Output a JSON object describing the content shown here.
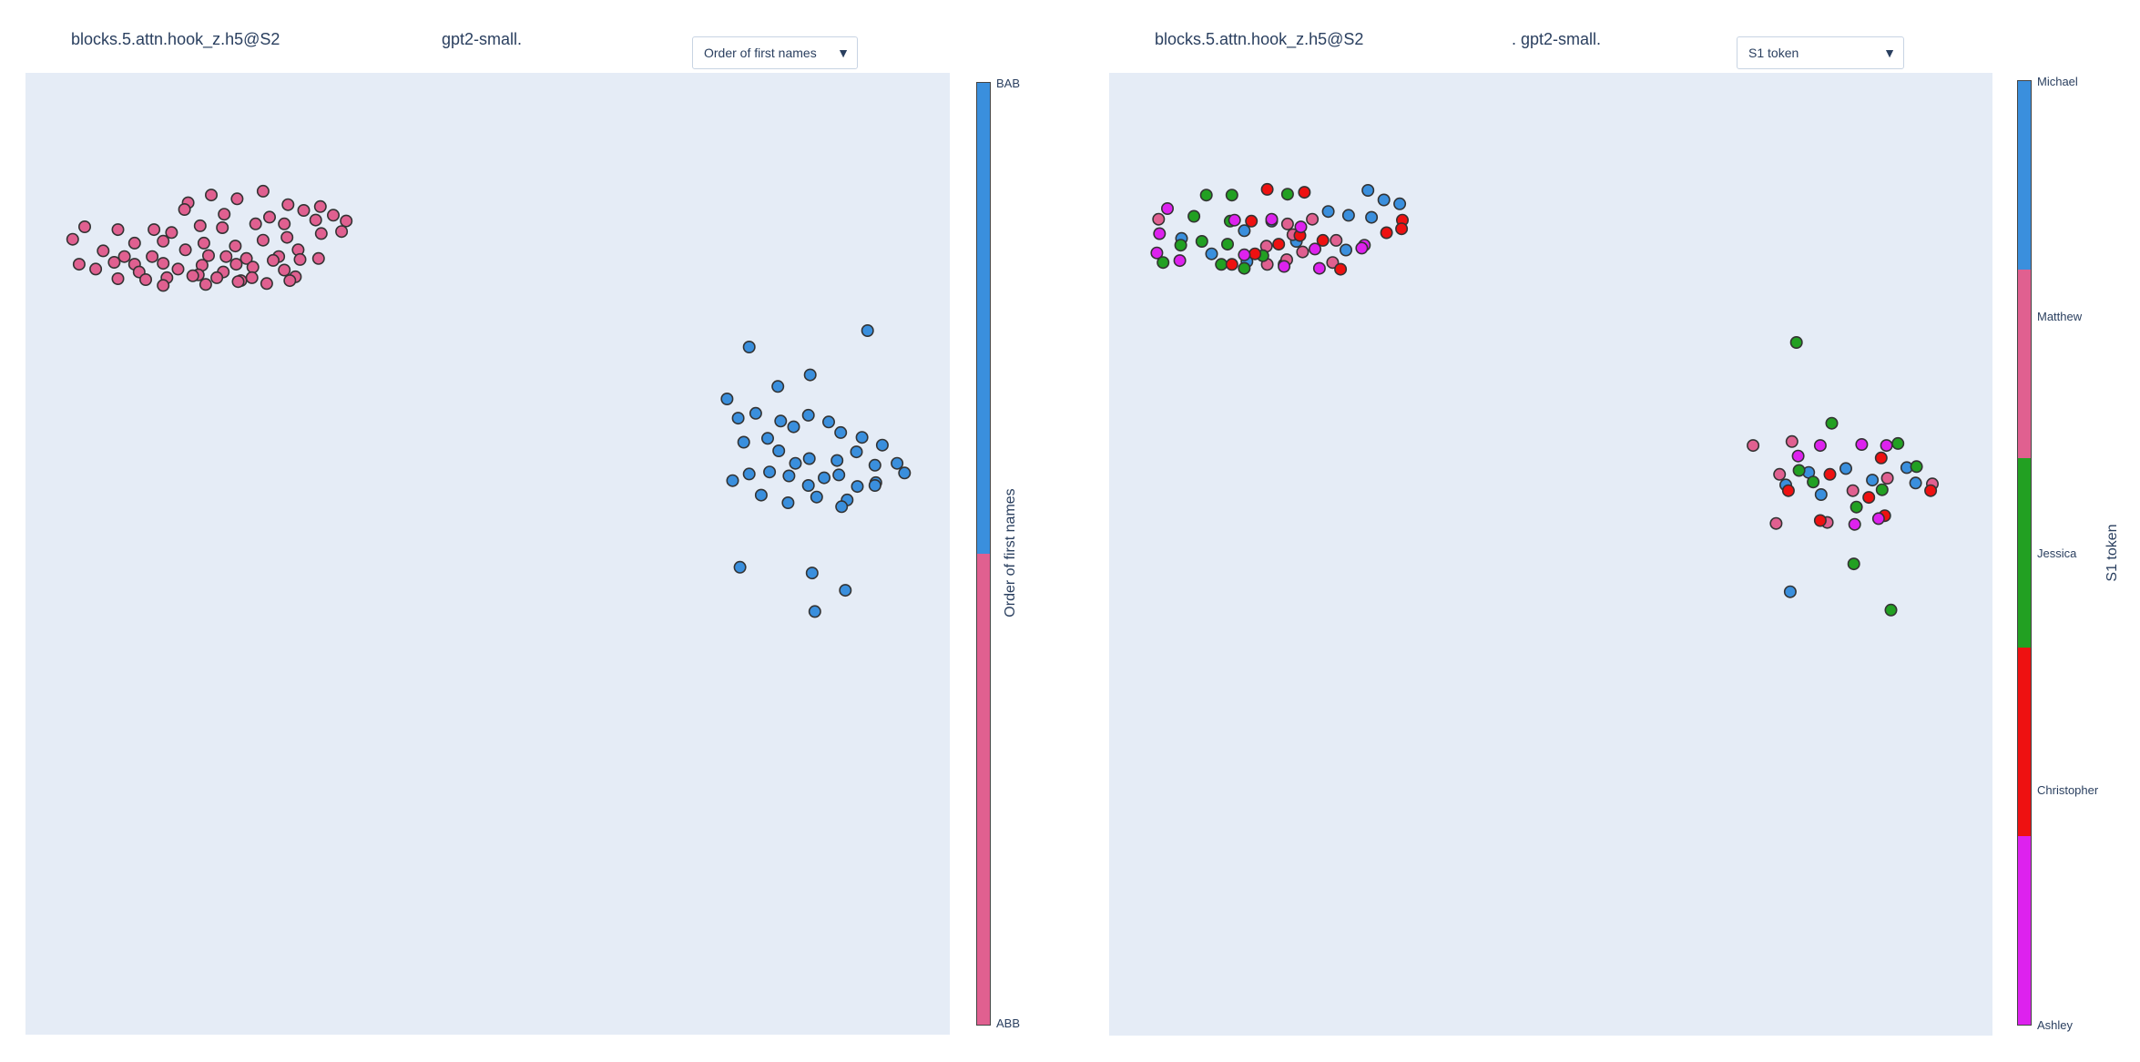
{
  "colors": {
    "pink": "#e06090",
    "blue": "#3a8fdd",
    "green": "#22a022",
    "red": "#ee1111",
    "magenta": "#dd22ee",
    "plot_bg": "#e5ecf6"
  },
  "left": {
    "hook_label": "blocks.5.attn.hook_z.h5@S2",
    "model_label": "gpt2-small.",
    "dropdown_value": "Order of first names",
    "colorbar_title": "Order of first names",
    "colorbar_ticks": [
      "BAB",
      "ABB"
    ]
  },
  "right": {
    "hook_label": "blocks.5.attn.hook_z.h5@S2",
    "model_label": ". gpt2-small.",
    "dropdown_value": "S1 token",
    "colorbar_title": "S1 token",
    "colorbar_ticks": [
      "Michael",
      "Matthew",
      "Jessica",
      "Christopher",
      "Ashley"
    ]
  },
  "chart_data": [
    {
      "type": "scatter",
      "title": "",
      "xlabel": "",
      "ylabel": "",
      "xlim": [
        0,
        100
      ],
      "ylim": [
        0,
        100
      ],
      "legend": "colorbar right",
      "series": [
        {
          "name": "BAB",
          "color": "#3a8fdd",
          "points": [
            [
              78.3,
              71.5
            ],
            [
              81.4,
              67.4
            ],
            [
              84.9,
              68.6
            ],
            [
              91.1,
              73.2
            ],
            [
              75.9,
              66.1
            ],
            [
              77.1,
              64.1
            ],
            [
              79.0,
              64.6
            ],
            [
              81.7,
              63.8
            ],
            [
              83.1,
              63.2
            ],
            [
              84.7,
              64.4
            ],
            [
              86.9,
              63.7
            ],
            [
              88.2,
              62.6
            ],
            [
              90.5,
              62.1
            ],
            [
              92.7,
              61.3
            ],
            [
              77.7,
              61.6
            ],
            [
              80.3,
              62.0
            ],
            [
              81.5,
              60.7
            ],
            [
              83.3,
              59.4
            ],
            [
              84.8,
              59.9
            ],
            [
              87.8,
              59.7
            ],
            [
              89.9,
              60.6
            ],
            [
              91.9,
              59.2
            ],
            [
              94.3,
              59.4
            ],
            [
              76.5,
              57.6
            ],
            [
              78.3,
              58.3
            ],
            [
              80.5,
              58.5
            ],
            [
              82.6,
              58.1
            ],
            [
              84.7,
              57.1
            ],
            [
              86.4,
              57.9
            ],
            [
              88.0,
              58.2
            ],
            [
              90.0,
              57.0
            ],
            [
              92.0,
              57.4
            ],
            [
              95.1,
              58.4
            ],
            [
              79.6,
              56.1
            ],
            [
              82.5,
              55.3
            ],
            [
              85.6,
              55.9
            ],
            [
              88.9,
              55.6
            ],
            [
              88.3,
              54.9
            ],
            [
              91.9,
              57.1
            ],
            [
              77.3,
              48.6
            ],
            [
              85.1,
              48.0
            ],
            [
              88.7,
              46.2
            ],
            [
              85.4,
              44.0
            ]
          ]
        },
        {
          "name": "ABB",
          "color": "#e06090",
          "points": [
            [
              17.6,
              86.5
            ],
            [
              20.1,
              87.3
            ],
            [
              25.7,
              87.7
            ],
            [
              22.9,
              86.9
            ],
            [
              17.2,
              85.8
            ],
            [
              21.5,
              85.3
            ],
            [
              26.4,
              85.0
            ],
            [
              28.4,
              86.3
            ],
            [
              30.1,
              85.7
            ],
            [
              31.9,
              86.1
            ],
            [
              33.3,
              85.2
            ],
            [
              6.4,
              84.0
            ],
            [
              10.0,
              83.7
            ],
            [
              13.9,
              83.7
            ],
            [
              15.8,
              83.4
            ],
            [
              18.9,
              84.1
            ],
            [
              21.3,
              83.9
            ],
            [
              24.9,
              84.3
            ],
            [
              28.0,
              84.3
            ],
            [
              31.4,
              84.7
            ],
            [
              34.7,
              84.6
            ],
            [
              5.1,
              82.7
            ],
            [
              11.8,
              82.3
            ],
            [
              14.9,
              82.5
            ],
            [
              19.3,
              82.3
            ],
            [
              22.7,
              82.0
            ],
            [
              25.7,
              82.6
            ],
            [
              28.3,
              82.9
            ],
            [
              32.0,
              83.3
            ],
            [
              34.2,
              83.5
            ],
            [
              8.4,
              81.5
            ],
            [
              10.7,
              80.9
            ],
            [
              13.7,
              80.9
            ],
            [
              17.3,
              81.6
            ],
            [
              19.8,
              81.0
            ],
            [
              21.7,
              80.9
            ],
            [
              23.9,
              80.7
            ],
            [
              27.4,
              80.9
            ],
            [
              29.5,
              81.6
            ],
            [
              5.8,
              80.1
            ],
            [
              9.6,
              80.3
            ],
            [
              11.8,
              80.1
            ],
            [
              14.9,
              80.2
            ],
            [
              19.1,
              80.0
            ],
            [
              22.8,
              80.1
            ],
            [
              24.6,
              79.8
            ],
            [
              26.8,
              80.5
            ],
            [
              29.7,
              80.6
            ],
            [
              31.7,
              80.7
            ],
            [
              7.6,
              79.6
            ],
            [
              12.3,
              79.3
            ],
            [
              16.5,
              79.6
            ],
            [
              18.7,
              79.0
            ],
            [
              21.4,
              79.3
            ],
            [
              24.5,
              78.7
            ],
            [
              28.0,
              79.5
            ],
            [
              29.2,
              78.8
            ],
            [
              10.0,
              78.6
            ],
            [
              13.0,
              78.5
            ],
            [
              15.3,
              78.7
            ],
            [
              18.1,
              78.9
            ],
            [
              20.7,
              78.7
            ],
            [
              23.3,
              78.4
            ],
            [
              26.1,
              78.1
            ],
            [
              28.6,
              78.4
            ],
            [
              14.9,
              77.9
            ],
            [
              19.5,
              78.0
            ],
            [
              23.0,
              78.3
            ]
          ]
        }
      ]
    },
    {
      "type": "scatter",
      "title": "",
      "xlabel": "",
      "ylabel": "",
      "xlim": [
        0,
        100
      ],
      "ylim": [
        0,
        100
      ],
      "legend": "colorbar right",
      "series": [
        {
          "name": "Michael",
          "color": "#3a8fdd",
          "points": [
            [
              29.3,
              87.8
            ],
            [
              31.1,
              86.8
            ],
            [
              32.9,
              86.4
            ],
            [
              24.8,
              85.6
            ],
            [
              27.1,
              85.2
            ],
            [
              29.7,
              85.0
            ],
            [
              15.3,
              83.6
            ],
            [
              18.4,
              84.6
            ],
            [
              8.2,
              82.8
            ],
            [
              21.2,
              82.5
            ],
            [
              26.8,
              81.6
            ],
            [
              11.6,
              81.2
            ],
            [
              15.6,
              80.4
            ],
            [
              19.8,
              80.1
            ],
            [
              90.3,
              59.0
            ],
            [
              83.4,
              58.9
            ],
            [
              79.2,
              58.5
            ],
            [
              86.4,
              57.7
            ],
            [
              76.6,
              57.2
            ],
            [
              91.3,
              57.4
            ],
            [
              80.6,
              56.2
            ],
            [
              77.1,
              46.1
            ]
          ]
        },
        {
          "name": "Matthew",
          "color": "#e06090",
          "points": [
            [
              20.2,
              84.3
            ],
            [
              23.0,
              84.8
            ],
            [
              17.8,
              82.0
            ],
            [
              20.8,
              83.2
            ],
            [
              5.6,
              84.8
            ],
            [
              17.9,
              80.1
            ],
            [
              20.1,
              80.6
            ],
            [
              25.7,
              82.6
            ],
            [
              21.9,
              81.4
            ],
            [
              25.3,
              80.3
            ],
            [
              88.1,
              57.9
            ],
            [
              75.9,
              58.3
            ],
            [
              84.2,
              56.6
            ],
            [
              93.2,
              57.3
            ],
            [
              81.3,
              53.3
            ],
            [
              75.5,
              53.2
            ],
            [
              77.3,
              61.7
            ],
            [
              72.9,
              61.3
            ]
          ]
        },
        {
          "name": "Jessica",
          "color": "#22a022",
          "points": [
            [
              11.0,
              87.3
            ],
            [
              13.9,
              87.3
            ],
            [
              20.2,
              87.4
            ],
            [
              9.6,
              85.1
            ],
            [
              13.7,
              84.6
            ],
            [
              8.1,
              82.1
            ],
            [
              10.5,
              82.5
            ],
            [
              13.4,
              82.2
            ],
            [
              17.4,
              81.0
            ],
            [
              6.1,
              80.3
            ],
            [
              12.7,
              80.1
            ],
            [
              15.3,
              79.7
            ],
            [
              81.8,
              63.6
            ],
            [
              89.3,
              61.5
            ],
            [
              91.4,
              59.1
            ],
            [
              87.5,
              56.7
            ],
            [
              78.1,
              58.7
            ],
            [
              79.7,
              57.5
            ],
            [
              84.6,
              54.9
            ],
            [
              88.5,
              44.2
            ],
            [
              84.3,
              49.0
            ],
            [
              77.8,
              72.0
            ]
          ]
        },
        {
          "name": "Christopher",
          "color": "#ee1111",
          "points": [
            [
              17.9,
              87.9
            ],
            [
              22.1,
              87.6
            ],
            [
              33.2,
              84.7
            ],
            [
              33.1,
              83.8
            ],
            [
              16.1,
              84.6
            ],
            [
              21.6,
              83.1
            ],
            [
              31.4,
              83.4
            ],
            [
              24.2,
              82.6
            ],
            [
              19.2,
              82.2
            ],
            [
              26.2,
              79.6
            ],
            [
              16.5,
              81.2
            ],
            [
              13.9,
              80.1
            ],
            [
              87.4,
              60.0
            ],
            [
              93.0,
              56.6
            ],
            [
              81.6,
              58.3
            ],
            [
              86.0,
              55.9
            ],
            [
              80.5,
              53.5
            ],
            [
              87.8,
              54.0
            ],
            [
              76.9,
              56.6
            ]
          ]
        },
        {
          "name": "Ashley",
          "color": "#dd22ee",
          "points": [
            [
              6.6,
              85.9
            ],
            [
              14.2,
              84.7
            ],
            [
              18.4,
              84.8
            ],
            [
              21.7,
              84.0
            ],
            [
              5.7,
              83.3
            ],
            [
              28.9,
              82.1
            ],
            [
              5.4,
              81.3
            ],
            [
              8.0,
              80.5
            ],
            [
              23.3,
              81.7
            ],
            [
              15.3,
              81.1
            ],
            [
              28.6,
              81.8
            ],
            [
              19.8,
              79.9
            ],
            [
              23.8,
              79.7
            ],
            [
              88.0,
              61.3
            ],
            [
              85.2,
              61.4
            ],
            [
              80.5,
              61.3
            ],
            [
              78.0,
              60.2
            ],
            [
              87.1,
              53.7
            ],
            [
              84.4,
              53.1
            ]
          ]
        }
      ]
    }
  ]
}
